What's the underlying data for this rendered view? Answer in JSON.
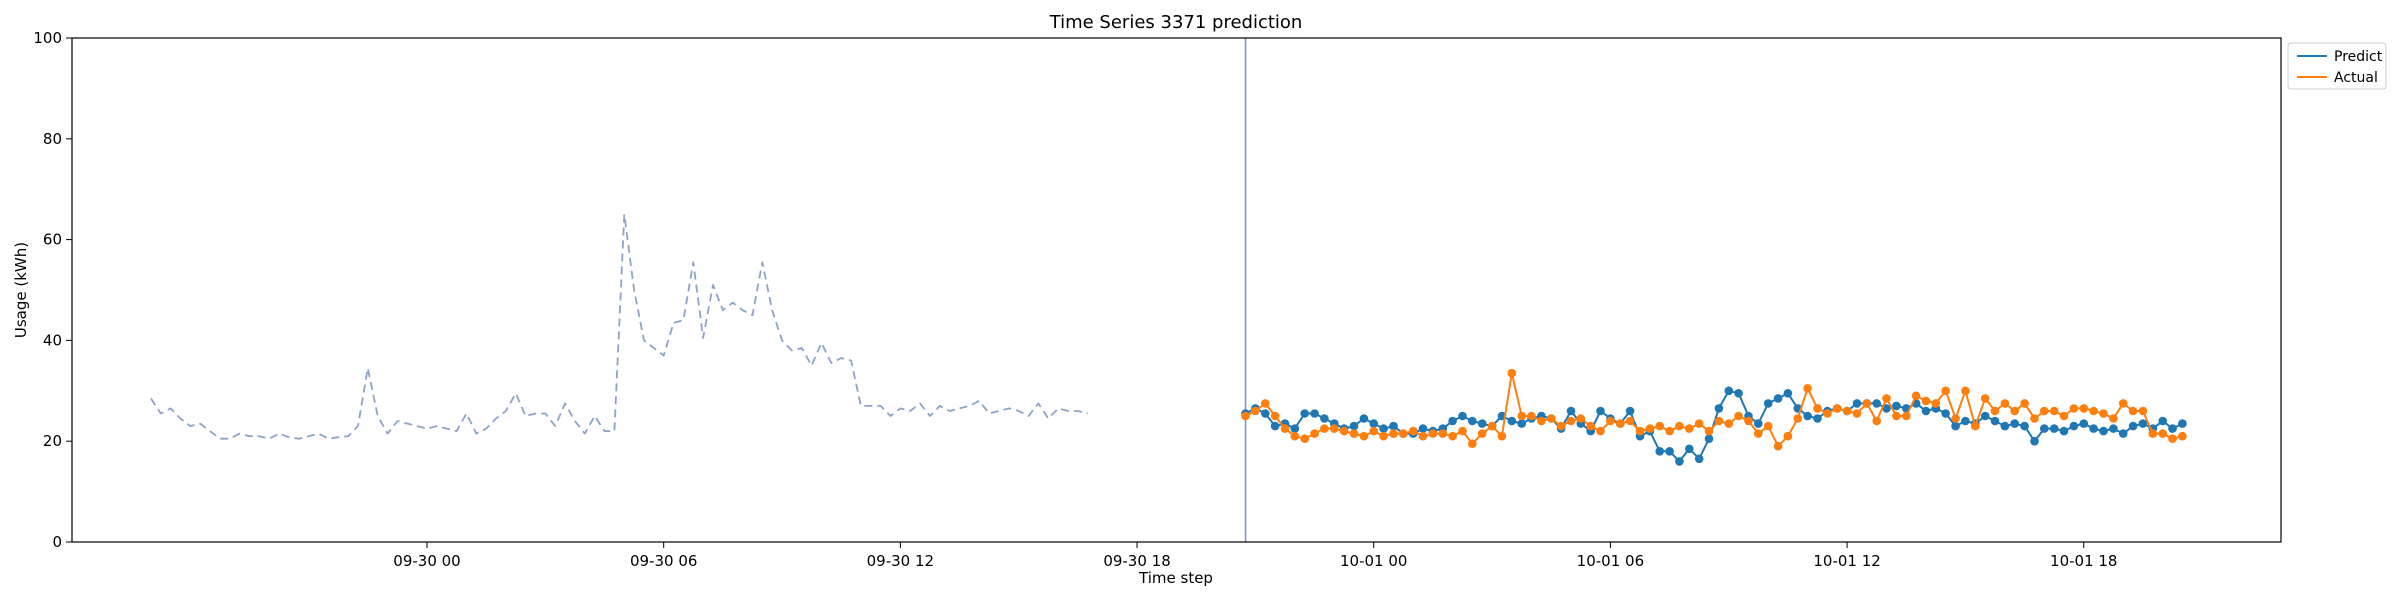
{
  "chart_data": {
    "type": "line",
    "title": "Time Series 3371 prediction",
    "xlabel": "Time step",
    "ylabel": "Usage (kWh)",
    "ylim": [
      0,
      100
    ],
    "yticks": [
      0,
      20,
      40,
      60,
      80,
      100
    ],
    "xlim": [
      "2024-09-29 15:00",
      "2024-10-01 23:00"
    ],
    "xticks": [
      {
        "value": "2024-09-30 00:00",
        "label": "09-30 00"
      },
      {
        "value": "2024-09-30 06:00",
        "label": "09-30 06"
      },
      {
        "value": "2024-09-30 12:00",
        "label": "09-30 12"
      },
      {
        "value": "2024-09-30 18:00",
        "label": "09-30 18"
      },
      {
        "value": "2024-10-01 00:00",
        "label": "10-01 00"
      },
      {
        "value": "2024-10-01 06:00",
        "label": "10-01 06"
      },
      {
        "value": "2024-10-01 12:00",
        "label": "10-01 12"
      },
      {
        "value": "2024-10-01 18:00",
        "label": "10-01 18"
      }
    ],
    "grid": false,
    "legend_position": "outside top-right",
    "vline": {
      "x": "2024-09-30 20:45",
      "color": "#7b8fd1"
    },
    "history": {
      "start": "2024-09-29 17:00",
      "interval_minutes": 15,
      "color": "#8ea3c8",
      "style": "dashed",
      "values": [
        28.5,
        25.5,
        26.5,
        24.5,
        23.0,
        23.5,
        22.0,
        20.5,
        20.5,
        21.5,
        21.0,
        21.0,
        20.5,
        21.5,
        20.8,
        20.5,
        21.0,
        21.5,
        20.5,
        20.8,
        21.0,
        23.0,
        34.5,
        25.0,
        21.5,
        24.0,
        23.5,
        23.0,
        22.5,
        23.0,
        22.5,
        22.0,
        25.5,
        21.5,
        22.5,
        24.5,
        26.0,
        29.5,
        25.0,
        25.5,
        25.5,
        23.0,
        27.5,
        24.0,
        21.5,
        25.0,
        22.0,
        22.0,
        65.0,
        50.0,
        40.0,
        38.5,
        37.0,
        43.5,
        44.0,
        55.5,
        40.5,
        51.0,
        46.0,
        47.5,
        46.0,
        45.0,
        55.5,
        46.0,
        40.0,
        38.0,
        38.5,
        35.0,
        39.5,
        35.5,
        36.5,
        36.0,
        27.0,
        27.0,
        27.0,
        25.0,
        26.5,
        26.0,
        27.5,
        25.0,
        27.0,
        26.0,
        26.5,
        27.0,
        28.0,
        25.5,
        26.0,
        26.5,
        26.0,
        25.0,
        27.5,
        24.5,
        26.5,
        26.0,
        26.0,
        25.5
      ]
    },
    "series": [
      {
        "name": "Predict",
        "color": "#1f77b4",
        "start": "2024-09-30 20:45",
        "interval_minutes": 15,
        "values": [
          25.5,
          26.5,
          25.5,
          23.0,
          23.5,
          22.5,
          25.5,
          25.5,
          24.5,
          23.5,
          22.5,
          23.0,
          24.5,
          23.5,
          22.5,
          23.0,
          21.5,
          21.5,
          22.5,
          22.0,
          22.5,
          24.0,
          25.0,
          24.0,
          23.5,
          23.0,
          25.0,
          24.0,
          23.5,
          24.5,
          25.0,
          24.5,
          22.5,
          26.0,
          23.5,
          22.0,
          26.0,
          24.5,
          23.5,
          26.0,
          21.0,
          22.0,
          18.0,
          18.0,
          16.0,
          18.5,
          16.5,
          20.5,
          26.5,
          30.0,
          29.5,
          25.0,
          23.5,
          27.5,
          28.5,
          29.5,
          26.5,
          25.0,
          24.5,
          26.0,
          26.5,
          26.0,
          27.5,
          27.5,
          27.5,
          26.5,
          27.0,
          26.5,
          27.5,
          26.0,
          26.5,
          25.5,
          23.0,
          24.0,
          23.5,
          25.0,
          24.0,
          23.0,
          23.5,
          23.0,
          20.0,
          22.5,
          22.5,
          22.0,
          23.0,
          23.5,
          22.5,
          22.0,
          22.5,
          21.5,
          23.0,
          23.5,
          22.5,
          24.0,
          22.5,
          23.5
        ]
      },
      {
        "name": "Actual",
        "color": "#ff7f0e",
        "start": "2024-09-30 20:45",
        "interval_minutes": 15,
        "values": [
          25.0,
          26.0,
          27.5,
          25.0,
          22.5,
          21.0,
          20.5,
          21.5,
          22.5,
          22.5,
          22.0,
          21.5,
          21.0,
          22.0,
          21.0,
          21.5,
          21.5,
          22.0,
          21.0,
          21.5,
          21.5,
          21.0,
          22.0,
          19.5,
          21.5,
          23.0,
          21.0,
          33.5,
          25.0,
          25.0,
          24.0,
          24.5,
          23.0,
          24.0,
          24.5,
          23.0,
          22.0,
          24.0,
          23.5,
          24.0,
          22.0,
          22.5,
          23.0,
          22.0,
          23.0,
          22.5,
          23.5,
          22.0,
          24.0,
          23.5,
          25.0,
          24.0,
          21.5,
          23.0,
          19.0,
          21.0,
          24.5,
          30.5,
          26.5,
          25.5,
          26.5,
          26.0,
          25.5,
          27.5,
          24.0,
          28.5,
          25.0,
          25.0,
          29.0,
          28.0,
          27.5,
          30.0,
          24.5,
          30.0,
          23.0,
          28.5,
          26.0,
          27.5,
          26.0,
          27.5,
          24.5,
          26.0,
          26.0,
          25.0,
          26.5,
          26.5,
          26.0,
          25.5,
          24.5,
          27.5,
          26.0,
          26.0,
          21.5,
          21.5,
          20.5,
          21.0
        ]
      }
    ]
  }
}
